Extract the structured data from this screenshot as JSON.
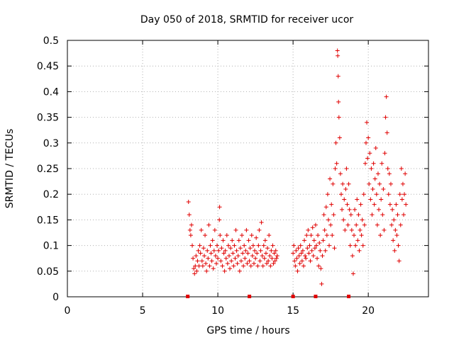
{
  "chart_data": {
    "type": "scatter",
    "title": "Day 050 of 2018, SRMTID for receiver ucor",
    "xlabel": "GPS time / hours",
    "ylabel": "SRMTID / TECUs",
    "xlim": [
      0,
      24
    ],
    "ylim": [
      0,
      0.5
    ],
    "xticks": [
      0,
      5,
      10,
      15,
      20
    ],
    "xtick_labels": [
      "0",
      "5",
      "10",
      "15",
      "20"
    ],
    "yticks": [
      0,
      0.05,
      0.1,
      0.15,
      0.2,
      0.25,
      0.3,
      0.35,
      0.4,
      0.45,
      0.5
    ],
    "ytick_labels": [
      "0",
      "0.05",
      "0.1",
      "0.15",
      "0.2",
      "0.25",
      "0.3",
      "0.35",
      "0.4",
      "0.45",
      "0.5"
    ],
    "grid": true,
    "marker": "+",
    "color": "#e00000",
    "data_gap_markers_at_zero": [
      8.0,
      12.1,
      15.0,
      16.5,
      18.7
    ],
    "series": [
      {
        "name": "SRMTID",
        "points": [
          [
            8.05,
            0.185
          ],
          [
            8.1,
            0.16
          ],
          [
            8.15,
            0.13
          ],
          [
            8.2,
            0.12
          ],
          [
            8.25,
            0.14
          ],
          [
            8.3,
            0.1
          ],
          [
            8.35,
            0.075
          ],
          [
            8.4,
            0.055
          ],
          [
            8.45,
            0.045
          ],
          [
            8.5,
            0.06
          ],
          [
            8.55,
            0.08
          ],
          [
            8.6,
            0.05
          ],
          [
            8.65,
            0.07
          ],
          [
            8.7,
            0.09
          ],
          [
            8.75,
            0.06
          ],
          [
            8.8,
            0.1
          ],
          [
            8.85,
            0.085
          ],
          [
            8.9,
            0.13
          ],
          [
            8.95,
            0.07
          ],
          [
            9.0,
            0.06
          ],
          [
            9.05,
            0.095
          ],
          [
            9.1,
            0.08
          ],
          [
            9.15,
            0.12
          ],
          [
            9.2,
            0.065
          ],
          [
            9.25,
            0.05
          ],
          [
            9.3,
            0.09
          ],
          [
            9.35,
            0.075
          ],
          [
            9.4,
            0.14
          ],
          [
            9.45,
            0.06
          ],
          [
            9.5,
            0.1
          ],
          [
            9.55,
            0.085
          ],
          [
            9.6,
            0.07
          ],
          [
            9.65,
            0.11
          ],
          [
            9.7,
            0.055
          ],
          [
            9.75,
            0.09
          ],
          [
            9.8,
            0.13
          ],
          [
            9.85,
            0.08
          ],
          [
            9.9,
            0.065
          ],
          [
            9.95,
            0.1
          ],
          [
            10.0,
            0.075
          ],
          [
            10.05,
            0.09
          ],
          [
            10.1,
            0.15
          ],
          [
            10.12,
            0.175
          ],
          [
            10.15,
            0.12
          ],
          [
            10.2,
            0.07
          ],
          [
            10.25,
            0.095
          ],
          [
            10.3,
            0.06
          ],
          [
            10.35,
            0.11
          ],
          [
            10.4,
            0.085
          ],
          [
            10.45,
            0.05
          ],
          [
            10.5,
            0.09
          ],
          [
            10.55,
            0.075
          ],
          [
            10.6,
            0.12
          ],
          [
            10.65,
            0.065
          ],
          [
            10.7,
            0.1
          ],
          [
            10.75,
            0.08
          ],
          [
            10.8,
            0.055
          ],
          [
            10.85,
            0.095
          ],
          [
            10.9,
            0.07
          ],
          [
            10.95,
            0.11
          ],
          [
            11.0,
            0.085
          ],
          [
            11.05,
            0.06
          ],
          [
            11.1,
            0.1
          ],
          [
            11.15,
            0.075
          ],
          [
            11.2,
            0.13
          ],
          [
            11.25,
            0.09
          ],
          [
            11.3,
            0.065
          ],
          [
            11.35,
            0.08
          ],
          [
            11.4,
            0.11
          ],
          [
            11.45,
            0.05
          ],
          [
            11.5,
            0.095
          ],
          [
            11.55,
            0.07
          ],
          [
            11.6,
            0.12
          ],
          [
            11.65,
            0.085
          ],
          [
            11.7,
            0.06
          ],
          [
            11.75,
            0.1
          ],
          [
            11.8,
            0.075
          ],
          [
            11.85,
            0.09
          ],
          [
            11.9,
            0.13
          ],
          [
            11.95,
            0.065
          ],
          [
            12.0,
            0.085
          ],
          [
            12.05,
            0.11
          ],
          [
            12.1,
            0.07
          ],
          [
            12.15,
            0.095
          ],
          [
            12.2,
            0.06
          ],
          [
            12.25,
            0.12
          ],
          [
            12.3,
            0.08
          ],
          [
            12.35,
            0.1
          ],
          [
            12.4,
            0.065
          ],
          [
            12.45,
            0.09
          ],
          [
            12.5,
            0.075
          ],
          [
            12.55,
            0.115
          ],
          [
            12.6,
            0.085
          ],
          [
            12.65,
            0.06
          ],
          [
            12.7,
            0.1
          ],
          [
            12.75,
            0.13
          ],
          [
            12.8,
            0.07
          ],
          [
            12.85,
            0.09
          ],
          [
            12.9,
            0.145
          ],
          [
            12.95,
            0.08
          ],
          [
            13.0,
            0.06
          ],
          [
            13.05,
            0.1
          ],
          [
            13.1,
            0.075
          ],
          [
            13.15,
            0.11
          ],
          [
            13.2,
            0.085
          ],
          [
            13.25,
            0.065
          ],
          [
            13.3,
            0.095
          ],
          [
            13.35,
            0.07
          ],
          [
            13.4,
            0.12
          ],
          [
            13.45,
            0.08
          ],
          [
            13.5,
            0.06
          ],
          [
            13.55,
            0.09
          ],
          [
            13.6,
            0.075
          ],
          [
            13.65,
            0.1
          ],
          [
            13.7,
            0.065
          ],
          [
            13.75,
            0.085
          ],
          [
            13.8,
            0.07
          ],
          [
            13.85,
            0.09
          ],
          [
            13.9,
            0.075
          ],
          [
            13.95,
            0.08
          ],
          [
            15.0,
            0.085
          ],
          [
            15.05,
            0.1
          ],
          [
            15.1,
            0.07
          ],
          [
            15.15,
            0.06
          ],
          [
            15.2,
            0.09
          ],
          [
            15.25,
            0.075
          ],
          [
            15.3,
            0.05
          ],
          [
            15.35,
            0.095
          ],
          [
            15.4,
            0.08
          ],
          [
            15.45,
            0.065
          ],
          [
            15.5,
            0.1
          ],
          [
            15.55,
            0.085
          ],
          [
            15.6,
            0.07
          ],
          [
            15.65,
            0.09
          ],
          [
            15.7,
            0.06
          ],
          [
            15.75,
            0.11
          ],
          [
            15.8,
            0.08
          ],
          [
            15.85,
            0.075
          ],
          [
            15.9,
            0.12
          ],
          [
            15.95,
            0.095
          ],
          [
            16.0,
            0.13
          ],
          [
            16.05,
            0.085
          ],
          [
            16.1,
            0.1
          ],
          [
            16.15,
            0.07
          ],
          [
            16.2,
            0.12
          ],
          [
            16.25,
            0.09
          ],
          [
            16.3,
            0.135
          ],
          [
            16.35,
            0.08
          ],
          [
            16.4,
            0.11
          ],
          [
            16.45,
            0.095
          ],
          [
            16.5,
            0.14
          ],
          [
            16.55,
            0.1
          ],
          [
            16.6,
            0.075
          ],
          [
            16.65,
            0.12
          ],
          [
            16.7,
            0.06
          ],
          [
            16.75,
            0.105
          ],
          [
            16.8,
            0.09
          ],
          [
            16.85,
            0.055
          ],
          [
            16.9,
            0.025
          ],
          [
            16.95,
            0.08
          ],
          [
            17.0,
            0.11
          ],
          [
            17.05,
            0.16
          ],
          [
            17.1,
            0.13
          ],
          [
            17.15,
            0.09
          ],
          [
            17.2,
            0.175
          ],
          [
            17.25,
            0.12
          ],
          [
            17.3,
            0.2
          ],
          [
            17.35,
            0.15
          ],
          [
            17.4,
            0.1
          ],
          [
            17.45,
            0.23
          ],
          [
            17.5,
            0.14
          ],
          [
            17.55,
            0.18
          ],
          [
            17.6,
            0.12
          ],
          [
            17.65,
            0.22
          ],
          [
            17.7,
            0.16
          ],
          [
            17.75,
            0.095
          ],
          [
            17.8,
            0.25
          ],
          [
            17.85,
            0.3
          ],
          [
            17.9,
            0.26
          ],
          [
            17.95,
            0.48
          ],
          [
            17.97,
            0.47
          ],
          [
            18.0,
            0.43
          ],
          [
            18.02,
            0.38
          ],
          [
            18.05,
            0.35
          ],
          [
            18.1,
            0.31
          ],
          [
            18.15,
            0.24
          ],
          [
            18.2,
            0.2
          ],
          [
            18.25,
            0.17
          ],
          [
            18.3,
            0.22
          ],
          [
            18.35,
            0.15
          ],
          [
            18.4,
            0.19
          ],
          [
            18.45,
            0.13
          ],
          [
            18.5,
            0.21
          ],
          [
            18.55,
            0.25
          ],
          [
            18.6,
            0.18
          ],
          [
            18.65,
            0.14
          ],
          [
            18.7,
            0.22
          ],
          [
            18.75,
            0.17
          ],
          [
            18.8,
            0.1
          ],
          [
            18.85,
            0.16
          ],
          [
            18.9,
            0.13
          ],
          [
            18.95,
            0.08
          ],
          [
            19.0,
            0.045
          ],
          [
            19.05,
            0.12
          ],
          [
            19.1,
            0.17
          ],
          [
            19.15,
            0.1
          ],
          [
            19.2,
            0.14
          ],
          [
            19.25,
            0.19
          ],
          [
            19.3,
            0.11
          ],
          [
            19.35,
            0.16
          ],
          [
            19.4,
            0.09
          ],
          [
            19.45,
            0.13
          ],
          [
            19.5,
            0.18
          ],
          [
            19.55,
            0.12
          ],
          [
            19.6,
            0.15
          ],
          [
            19.65,
            0.1
          ],
          [
            19.7,
            0.2
          ],
          [
            19.75,
            0.14
          ],
          [
            19.8,
            0.26
          ],
          [
            19.85,
            0.3
          ],
          [
            19.9,
            0.34
          ],
          [
            19.95,
            0.27
          ],
          [
            20.0,
            0.31
          ],
          [
            20.05,
            0.22
          ],
          [
            20.1,
            0.28
          ],
          [
            20.15,
            0.19
          ],
          [
            20.2,
            0.25
          ],
          [
            20.25,
            0.16
          ],
          [
            20.3,
            0.21
          ],
          [
            20.35,
            0.26
          ],
          [
            20.4,
            0.18
          ],
          [
            20.45,
            0.23
          ],
          [
            20.5,
            0.29
          ],
          [
            20.55,
            0.2
          ],
          [
            20.6,
            0.14
          ],
          [
            20.65,
            0.24
          ],
          [
            20.7,
            0.17
          ],
          [
            20.75,
            0.22
          ],
          [
            20.8,
            0.12
          ],
          [
            20.85,
            0.19
          ],
          [
            20.9,
            0.26
          ],
          [
            20.95,
            0.16
          ],
          [
            21.0,
            0.21
          ],
          [
            21.05,
            0.13
          ],
          [
            21.1,
            0.28
          ],
          [
            21.15,
            0.35
          ],
          [
            21.2,
            0.39
          ],
          [
            21.25,
            0.32
          ],
          [
            21.3,
            0.25
          ],
          [
            21.35,
            0.2
          ],
          [
            21.4,
            0.24
          ],
          [
            21.45,
            0.18
          ],
          [
            21.5,
            0.22
          ],
          [
            21.55,
            0.14
          ],
          [
            21.6,
            0.17
          ],
          [
            21.65,
            0.11
          ],
          [
            21.7,
            0.15
          ],
          [
            21.75,
            0.09
          ],
          [
            21.8,
            0.13
          ],
          [
            21.85,
            0.18
          ],
          [
            21.9,
            0.12
          ],
          [
            21.95,
            0.16
          ],
          [
            22.0,
            0.1
          ],
          [
            22.05,
            0.07
          ],
          [
            22.1,
            0.2
          ],
          [
            22.15,
            0.14
          ],
          [
            22.2,
            0.25
          ],
          [
            22.25,
            0.19
          ],
          [
            22.3,
            0.22
          ],
          [
            22.35,
            0.16
          ],
          [
            22.4,
            0.2
          ],
          [
            22.45,
            0.24
          ],
          [
            22.5,
            0.18
          ]
        ]
      }
    ]
  }
}
